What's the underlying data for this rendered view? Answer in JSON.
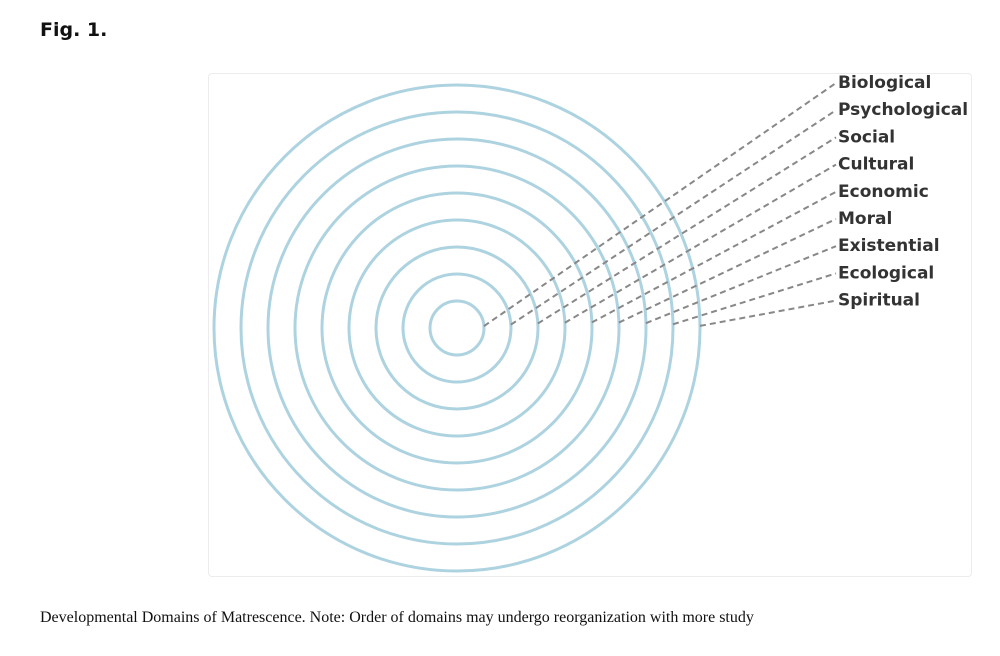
{
  "figure": {
    "label": "Fig. 1.",
    "domains": [
      "Biological",
      "Psychological",
      "Social",
      "Cultural",
      "Economic",
      "Moral",
      "Existential",
      "Ecological",
      "Spiritual"
    ],
    "caption": "Developmental Domains of Matrescence. Note: Order of domains may undergo reorganization with more study"
  }
}
